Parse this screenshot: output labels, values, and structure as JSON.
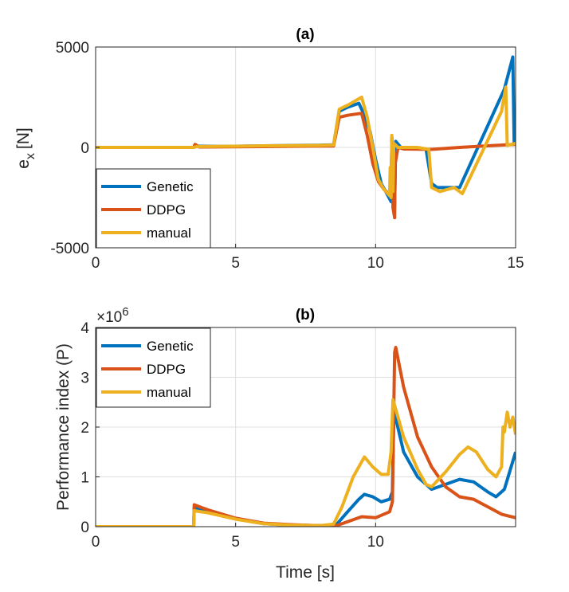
{
  "chart_data": [
    {
      "type": "line",
      "title": "(a)",
      "xlabel": "",
      "ylabel": "e_x [N]",
      "ylabel_main": "e",
      "ylabel_sub": "x",
      "ylabel_unit": "[N]",
      "xlim": [
        0,
        15
      ],
      "ylim": [
        -5000,
        5000
      ],
      "xticks": [
        0,
        5,
        10,
        15
      ],
      "yticks": [
        -5000,
        0,
        5000
      ],
      "legend_position": "bottom-left",
      "series": [
        {
          "name": "Genetic",
          "color": "#0072BD",
          "points": [
            [
              0,
              0
            ],
            [
              3.5,
              0
            ],
            [
              3.6,
              60
            ],
            [
              4.5,
              50
            ],
            [
              6,
              80
            ],
            [
              8,
              110
            ],
            [
              8.5,
              130
            ],
            [
              8.7,
              1800
            ],
            [
              9,
              2000
            ],
            [
              9.4,
              2200
            ],
            [
              9.6,
              1600
            ],
            [
              9.8,
              800
            ],
            [
              10,
              -600
            ],
            [
              10.2,
              -1800
            ],
            [
              10.4,
              -2300
            ],
            [
              10.55,
              -2700
            ],
            [
              10.58,
              500
            ],
            [
              10.62,
              -2800
            ],
            [
              10.68,
              -3000
            ],
            [
              10.72,
              300
            ],
            [
              10.9,
              0
            ],
            [
              11.5,
              -50
            ],
            [
              11.8,
              -80
            ],
            [
              12,
              -1800
            ],
            [
              12.2,
              -2000
            ],
            [
              13,
              -2000
            ],
            [
              14.6,
              2900
            ],
            [
              14.9,
              4500
            ],
            [
              14.95,
              200
            ]
          ]
        },
        {
          "name": "DDPG",
          "color": "#D95319",
          "points": [
            [
              0,
              0
            ],
            [
              3.5,
              0
            ],
            [
              3.55,
              150
            ],
            [
              3.7,
              20
            ],
            [
              6,
              40
            ],
            [
              8.5,
              70
            ],
            [
              8.7,
              1500
            ],
            [
              9,
              1600
            ],
            [
              9.5,
              1700
            ],
            [
              9.7,
              600
            ],
            [
              9.9,
              -800
            ],
            [
              10.1,
              -1700
            ],
            [
              10.3,
              -2100
            ],
            [
              10.55,
              -2400
            ],
            [
              10.58,
              500
            ],
            [
              10.62,
              -3000
            ],
            [
              10.68,
              -3500
            ],
            [
              10.7,
              -800
            ],
            [
              10.8,
              0
            ],
            [
              11,
              -80
            ],
            [
              12,
              -100
            ],
            [
              13,
              0
            ],
            [
              14,
              80
            ],
            [
              15,
              150
            ]
          ]
        },
        {
          "name": "manual",
          "color": "#EDB120",
          "points": [
            [
              0,
              0
            ],
            [
              3.5,
              0
            ],
            [
              3.6,
              40
            ],
            [
              5,
              60
            ],
            [
              6,
              80
            ],
            [
              8,
              100
            ],
            [
              8.5,
              120
            ],
            [
              8.7,
              1900
            ],
            [
              9,
              2100
            ],
            [
              9.5,
              2500
            ],
            [
              9.7,
              1500
            ],
            [
              9.9,
              0
            ],
            [
              10.1,
              -1600
            ],
            [
              10.3,
              -2100
            ],
            [
              10.5,
              -2400
            ],
            [
              10.52,
              -1000
            ],
            [
              10.55,
              -2500
            ],
            [
              10.58,
              600
            ],
            [
              10.62,
              -2200
            ],
            [
              10.65,
              200
            ],
            [
              10.8,
              0
            ],
            [
              11.5,
              0
            ],
            [
              11.9,
              -100
            ],
            [
              12,
              -2000
            ],
            [
              12.3,
              -2200
            ],
            [
              12.8,
              -2000
            ],
            [
              13.1,
              -2300
            ],
            [
              14.5,
              1800
            ],
            [
              14.65,
              3000
            ],
            [
              14.7,
              100
            ],
            [
              15,
              200
            ]
          ]
        }
      ]
    },
    {
      "type": "line",
      "title": "(b)",
      "xlabel": "Time [s]",
      "ylabel": "Performance index (P)",
      "multiplier": "×10",
      "multiplier_exp": "6",
      "xlim": [
        0,
        15
      ],
      "ylim": [
        0,
        4
      ],
      "xticks": [
        0,
        5,
        10
      ],
      "yticks": [
        0,
        1,
        2,
        3,
        4
      ],
      "legend_position": "top-left",
      "series": [
        {
          "name": "Genetic",
          "color": "#0072BD",
          "points": [
            [
              0,
              0
            ],
            [
              3.5,
              0
            ],
            [
              3.52,
              0.38
            ],
            [
              4,
              0.3
            ],
            [
              5,
              0.16
            ],
            [
              6,
              0.06
            ],
            [
              7,
              0.03
            ],
            [
              8,
              0.02
            ],
            [
              8.6,
              0.04
            ],
            [
              9,
              0.3
            ],
            [
              9.4,
              0.55
            ],
            [
              9.6,
              0.65
            ],
            [
              9.9,
              0.6
            ],
            [
              10.2,
              0.5
            ],
            [
              10.5,
              0.55
            ],
            [
              10.6,
              0.7
            ],
            [
              10.65,
              2.3
            ],
            [
              10.75,
              2.1
            ],
            [
              11,
              1.5
            ],
            [
              11.5,
              1.0
            ],
            [
              12,
              0.75
            ],
            [
              12.5,
              0.85
            ],
            [
              13,
              0.95
            ],
            [
              13.5,
              0.9
            ],
            [
              14,
              0.7
            ],
            [
              14.3,
              0.6
            ],
            [
              14.6,
              0.75
            ],
            [
              15,
              1.5
            ]
          ]
        },
        {
          "name": "DDPG",
          "color": "#D95319",
          "points": [
            [
              0,
              0
            ],
            [
              3.5,
              0
            ],
            [
              3.52,
              0.44
            ],
            [
              4,
              0.34
            ],
            [
              5,
              0.17
            ],
            [
              6,
              0.07
            ],
            [
              7,
              0.04
            ],
            [
              8,
              0.02
            ],
            [
              8.6,
              0.02
            ],
            [
              9,
              0.1
            ],
            [
              9.5,
              0.2
            ],
            [
              10,
              0.18
            ],
            [
              10.5,
              0.3
            ],
            [
              10.6,
              0.5
            ],
            [
              10.68,
              3.5
            ],
            [
              10.72,
              3.6
            ],
            [
              11,
              2.8
            ],
            [
              11.5,
              1.8
            ],
            [
              12,
              1.2
            ],
            [
              12.5,
              0.8
            ],
            [
              13,
              0.6
            ],
            [
              13.5,
              0.55
            ],
            [
              14,
              0.4
            ],
            [
              14.5,
              0.25
            ],
            [
              15,
              0.18
            ]
          ]
        },
        {
          "name": "manual",
          "color": "#EDB120",
          "points": [
            [
              0,
              0
            ],
            [
              3.5,
              0
            ],
            [
              3.52,
              0.32
            ],
            [
              4,
              0.28
            ],
            [
              5,
              0.15
            ],
            [
              6,
              0.06
            ],
            [
              7,
              0.03
            ],
            [
              8,
              0.02
            ],
            [
              8.5,
              0.05
            ],
            [
              8.8,
              0.4
            ],
            [
              9.2,
              1.0
            ],
            [
              9.6,
              1.4
            ],
            [
              9.9,
              1.2
            ],
            [
              10.2,
              1.05
            ],
            [
              10.45,
              1.05
            ],
            [
              10.55,
              1.5
            ],
            [
              10.62,
              2.55
            ],
            [
              10.8,
              2.2
            ],
            [
              11,
              1.8
            ],
            [
              11.5,
              1.15
            ],
            [
              11.8,
              0.85
            ],
            [
              12,
              0.8
            ],
            [
              12.5,
              1.1
            ],
            [
              13,
              1.45
            ],
            [
              13.3,
              1.6
            ],
            [
              13.6,
              1.5
            ],
            [
              14,
              1.15
            ],
            [
              14.3,
              1.0
            ],
            [
              14.5,
              1.2
            ],
            [
              14.55,
              2.0
            ],
            [
              14.6,
              1.9
            ],
            [
              14.7,
              2.3
            ],
            [
              14.8,
              2.0
            ],
            [
              14.9,
              2.2
            ],
            [
              15,
              1.85
            ]
          ]
        }
      ]
    }
  ]
}
